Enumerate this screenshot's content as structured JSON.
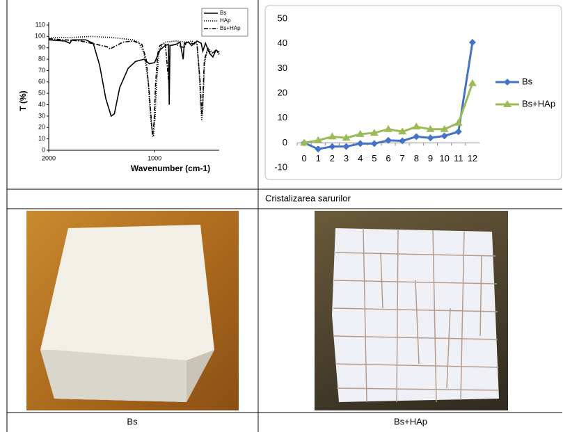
{
  "chart_data": [
    {
      "type": "line",
      "y_label": "T (%)",
      "x_label": "Wavenumber (cm-1)",
      "xlim": [
        2000,
        390
      ],
      "xticks": [
        2000,
        1000
      ],
      "ylim": [
        0,
        110
      ],
      "yticks": [
        0,
        10,
        20,
        30,
        40,
        50,
        60,
        70,
        80,
        90,
        100,
        110
      ],
      "legend": "top-right",
      "series": [
        {
          "name": "Bs",
          "color": "#000000",
          "style": "solid",
          "x": [
            2000,
            1850,
            1800,
            1780,
            1650,
            1580,
            1520,
            1460,
            1410,
            1380,
            1330,
            1250,
            1180,
            1100,
            1050,
            1000,
            950,
            900,
            870,
            862,
            855,
            800,
            760,
            730,
            720,
            680,
            650,
            600,
            560,
            545,
            520,
            480,
            450,
            420,
            390
          ],
          "values": [
            97,
            96,
            94,
            97,
            97,
            94,
            75,
            45,
            30,
            32,
            55,
            72,
            78,
            80,
            76,
            77,
            88,
            92,
            93,
            40,
            92,
            93,
            95,
            80,
            94,
            95,
            92,
            96,
            94,
            87,
            94,
            85,
            82,
            88,
            86
          ]
        },
        {
          "name": "HAp",
          "color": "#000000",
          "style": "dotted",
          "x": [
            2000,
            1800,
            1600,
            1400,
            1200,
            1150,
            1100,
            1060,
            1040,
            1020,
            1010,
            995,
            980,
            960,
            930,
            900,
            800,
            700,
            650,
            600,
            580,
            565,
            555,
            545,
            530,
            500,
            450,
            420,
            390
          ],
          "values": [
            99,
            99,
            100,
            99,
            97,
            95,
            85,
            60,
            30,
            15,
            12,
            30,
            60,
            85,
            93,
            95,
            96,
            95,
            96,
            94,
            70,
            40,
            26,
            35,
            75,
            90,
            86,
            88,
            85
          ]
        },
        {
          "name": "Bs+HAp",
          "color": "#000000",
          "style": "dashdot",
          "x": [
            2000,
            1850,
            1700,
            1550,
            1450,
            1420,
            1380,
            1300,
            1200,
            1120,
            1080,
            1050,
            1030,
            1020,
            1005,
            990,
            970,
            950,
            900,
            862,
            855,
            800,
            720,
            700,
            600,
            570,
            555,
            545,
            530,
            500,
            450,
            420,
            390
          ],
          "values": [
            98,
            97,
            96,
            93,
            91,
            89,
            91,
            95,
            96,
            93,
            80,
            50,
            25,
            12,
            25,
            60,
            85,
            92,
            94,
            55,
            92,
            93,
            90,
            95,
            93,
            60,
            30,
            45,
            80,
            88,
            85,
            88,
            84
          ]
        }
      ]
    },
    {
      "type": "line",
      "categories": [
        "0",
        "1",
        "2",
        "3",
        "4",
        "5",
        "6",
        "7",
        "8",
        "9",
        "10",
        "11",
        "12"
      ],
      "ylim": [
        -10,
        50
      ],
      "yticks": [
        -10,
        0,
        10,
        20,
        30,
        40,
        50
      ],
      "legend": "right",
      "series": [
        {
          "name": "Bs",
          "color": "#4472c4",
          "marker": "diamond",
          "values": [
            0,
            -2.5,
            -1.5,
            -1.5,
            -0.3,
            -0.3,
            1,
            0.8,
            2.5,
            2,
            2.8,
            4.5,
            40.5
          ]
        },
        {
          "name": "Bs+HAp",
          "color": "#9bbb59",
          "marker": "triangle",
          "values": [
            0,
            1,
            2.5,
            2,
            3.5,
            4,
            5.5,
            4.5,
            6.5,
            5.5,
            5.5,
            8,
            24
          ]
        }
      ]
    }
  ],
  "table": {
    "caption": "Cristalizarea sarurilor",
    "labels": [
      "Bs",
      "Bs+HAp"
    ]
  }
}
